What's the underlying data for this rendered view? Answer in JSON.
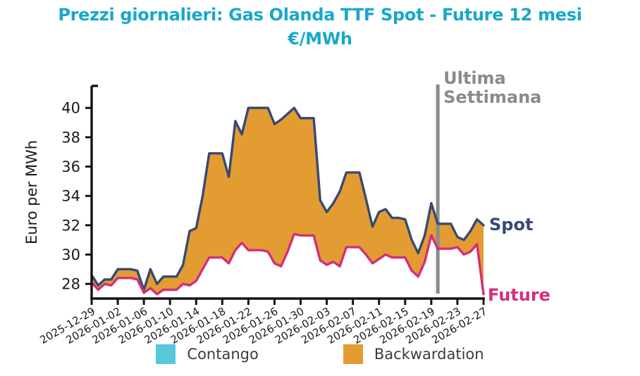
{
  "title": {
    "line1": "Prezzi giornalieri: Gas Olanda TTF Spot - Future 12 mesi",
    "line2": "€/MWh",
    "color": "#17a8c9"
  },
  "chart_data": {
    "type": "area",
    "title": "Prezzi giornalieri: Gas Olanda TTF Spot - Future 12 mesi €/MWh",
    "xlabel": "",
    "ylabel": "Euro per MWh",
    "ylim": [
      27.0,
      41.5
    ],
    "yticks": [
      28,
      30,
      32,
      34,
      36,
      38,
      40
    ],
    "grid": false,
    "legend_position": "bottom-center",
    "x": [
      "2025-12-29",
      "2025-12-30",
      "2025-12-31",
      "2026-01-01",
      "2026-01-02",
      "2026-01-03",
      "2026-01-04",
      "2026-01-05",
      "2026-01-06",
      "2026-01-07",
      "2026-01-08",
      "2026-01-09",
      "2026-01-10",
      "2026-01-11",
      "2026-01-12",
      "2026-01-13",
      "2026-01-14",
      "2026-01-15",
      "2026-01-16",
      "2026-01-17",
      "2026-01-18",
      "2026-01-19",
      "2026-01-20",
      "2026-01-21",
      "2026-01-22",
      "2026-01-23",
      "2026-01-24",
      "2026-01-25",
      "2026-01-26",
      "2026-01-27",
      "2026-01-28",
      "2026-01-29",
      "2026-01-30",
      "2026-01-31",
      "2026-02-01",
      "2026-02-02",
      "2026-02-03",
      "2026-02-04",
      "2026-02-05",
      "2026-02-06",
      "2026-02-07",
      "2026-02-08",
      "2026-02-09",
      "2026-02-10",
      "2026-02-11",
      "2026-02-12",
      "2026-02-13",
      "2026-02-14",
      "2026-02-15",
      "2026-02-16",
      "2026-02-17",
      "2026-02-18",
      "2026-02-19",
      "2026-02-20",
      "2026-02-21",
      "2026-02-22",
      "2026-02-23",
      "2026-02-24",
      "2026-02-25",
      "2026-02-26",
      "2026-02-27"
    ],
    "xtick_labels": [
      "2025-12-29",
      "2026-01-02",
      "2026-01-06",
      "2026-01-10",
      "2026-01-14",
      "2026-01-18",
      "2026-01-22",
      "2026-01-26",
      "2026-01-30",
      "2026-02-03",
      "2026-02-07",
      "2026-02-11",
      "2026-02-15",
      "2026-02-19",
      "2026-02-23",
      "2026-02-27"
    ],
    "xtick_every": 4,
    "series": [
      {
        "name": "Spot",
        "color": "#364a73",
        "values": [
          28.6,
          27.9,
          28.3,
          28.3,
          29.0,
          29.0,
          29.0,
          28.9,
          27.6,
          29.0,
          28.0,
          28.5,
          28.5,
          28.5,
          29.3,
          31.6,
          31.8,
          34.0,
          36.9,
          36.9,
          36.9,
          35.3,
          39.1,
          38.2,
          40.0,
          40.0,
          40.0,
          40.0,
          38.9,
          39.2,
          39.6,
          40.0,
          39.3,
          39.3,
          39.3,
          33.7,
          32.9,
          33.5,
          34.3,
          35.6,
          35.6,
          35.6,
          33.8,
          31.9,
          32.9,
          33.1,
          32.5,
          32.5,
          32.4,
          31.0,
          30.1,
          31.3,
          33.5,
          32.1,
          32.1,
          32.1,
          31.2,
          31.0,
          31.6,
          32.4,
          32.0
        ]
      },
      {
        "name": "Future",
        "color": "#d42e7c",
        "values": [
          28.1,
          27.6,
          28.0,
          27.9,
          28.4,
          28.4,
          28.4,
          28.3,
          27.4,
          27.7,
          27.3,
          27.6,
          27.6,
          27.6,
          28.0,
          27.9,
          28.2,
          29.0,
          29.8,
          29.8,
          29.8,
          29.4,
          30.3,
          30.8,
          30.3,
          30.3,
          30.3,
          30.2,
          29.4,
          29.2,
          30.2,
          31.4,
          31.3,
          31.3,
          31.3,
          29.6,
          29.3,
          29.5,
          29.2,
          30.5,
          30.5,
          30.5,
          30.0,
          29.4,
          29.7,
          30.0,
          29.8,
          29.8,
          29.8,
          28.9,
          28.5,
          29.5,
          31.3,
          30.4,
          30.4,
          30.4,
          30.5,
          30.0,
          30.2,
          30.7,
          27.3
        ]
      }
    ],
    "fill_regions": [
      {
        "label": "Contango",
        "condition": "future > spot",
        "color": "#57c7d9"
      },
      {
        "label": "Backwardation",
        "condition": "spot > future",
        "color": "#e29c32"
      }
    ],
    "annotations": {
      "vline": {
        "x": "2026-02-20",
        "color": "#8a8a8a",
        "label_line1": "Ultima",
        "label_line2": "Settimana"
      },
      "spot_end_label": "Spot",
      "future_end_label": "Future"
    }
  },
  "legend": [
    {
      "label": "Contango",
      "color": "#57c7d9"
    },
    {
      "label": "Backwardation",
      "color": "#e29c32"
    }
  ]
}
